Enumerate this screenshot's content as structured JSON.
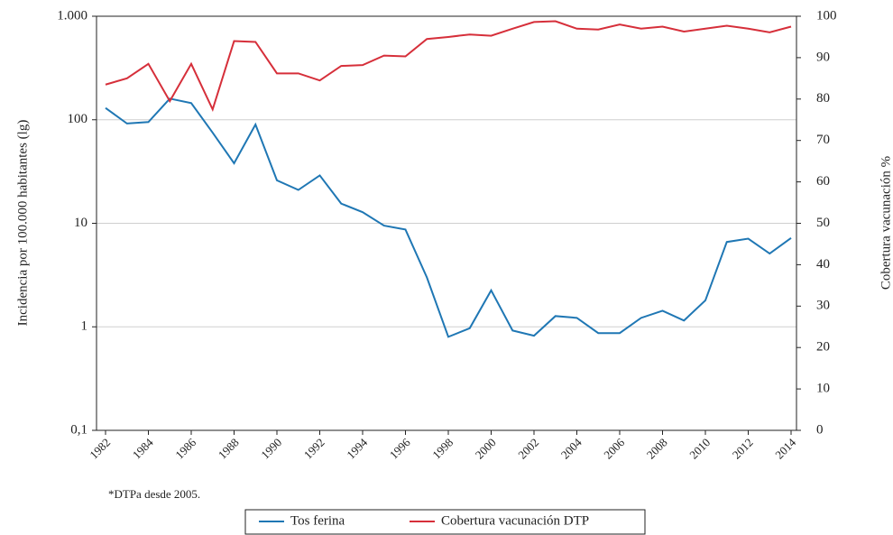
{
  "chart_data": {
    "type": "line",
    "x": [
      1982,
      1983,
      1984,
      1985,
      1986,
      1987,
      1988,
      1989,
      1990,
      1991,
      1992,
      1993,
      1994,
      1995,
      1996,
      1997,
      1998,
      1999,
      2000,
      2001,
      2002,
      2003,
      2004,
      2005,
      2006,
      2007,
      2008,
      2009,
      2010,
      2011,
      2012,
      2013,
      2014
    ],
    "xlim": [
      1982,
      2014
    ],
    "xticks": [
      1982,
      1984,
      1986,
      1988,
      1990,
      1992,
      1994,
      1996,
      1998,
      2000,
      2002,
      2004,
      2006,
      2008,
      2010,
      2012,
      2014
    ],
    "ylabel": "Incidencia por 100.000 habitantes (lg)",
    "yscale": "log",
    "ylim": [
      0.1,
      1000
    ],
    "yticks": [
      {
        "value": 0.1,
        "label": "0,1"
      },
      1,
      10,
      100,
      {
        "value": 1000,
        "label": "1.000"
      }
    ],
    "y2label": "Cobertura vacunación %",
    "y2lim": [
      0,
      100
    ],
    "y2ticks": [
      0,
      10,
      20,
      30,
      40,
      50,
      60,
      70,
      80,
      90,
      100
    ],
    "grid": true,
    "legend": "bottom",
    "footnote": "*DTPa desde 2005.",
    "series": [
      {
        "name": "Tos ferina",
        "color": "#1f77b4",
        "values": [
          130,
          92,
          95,
          160,
          145,
          75,
          38,
          90,
          26,
          21,
          29,
          15.5,
          12.8,
          9.5,
          8.7,
          3,
          0.8,
          0.97,
          2.25,
          0.92,
          0.82,
          1.27,
          1.22,
          0.87,
          0.87,
          1.22,
          1.43,
          1.15,
          1.8,
          6.6,
          7.1,
          5.1,
          7.2
        ]
      },
      {
        "name": "Cobertura vacunación DTP",
        "color": "#d62f3a",
        "axis": "y2",
        "values": [
          83.5,
          85,
          88.5,
          79.5,
          88.5,
          77.5,
          94,
          93.8,
          86.2,
          86.2,
          84.5,
          88,
          88.2,
          90.5,
          90.3,
          94.5,
          95,
          95.6,
          95.3,
          97,
          98.6,
          98.8,
          97,
          96.8,
          98,
          97,
          97.5,
          96.3,
          97,
          97.7,
          97,
          96.1,
          97.5
        ]
      }
    ]
  }
}
